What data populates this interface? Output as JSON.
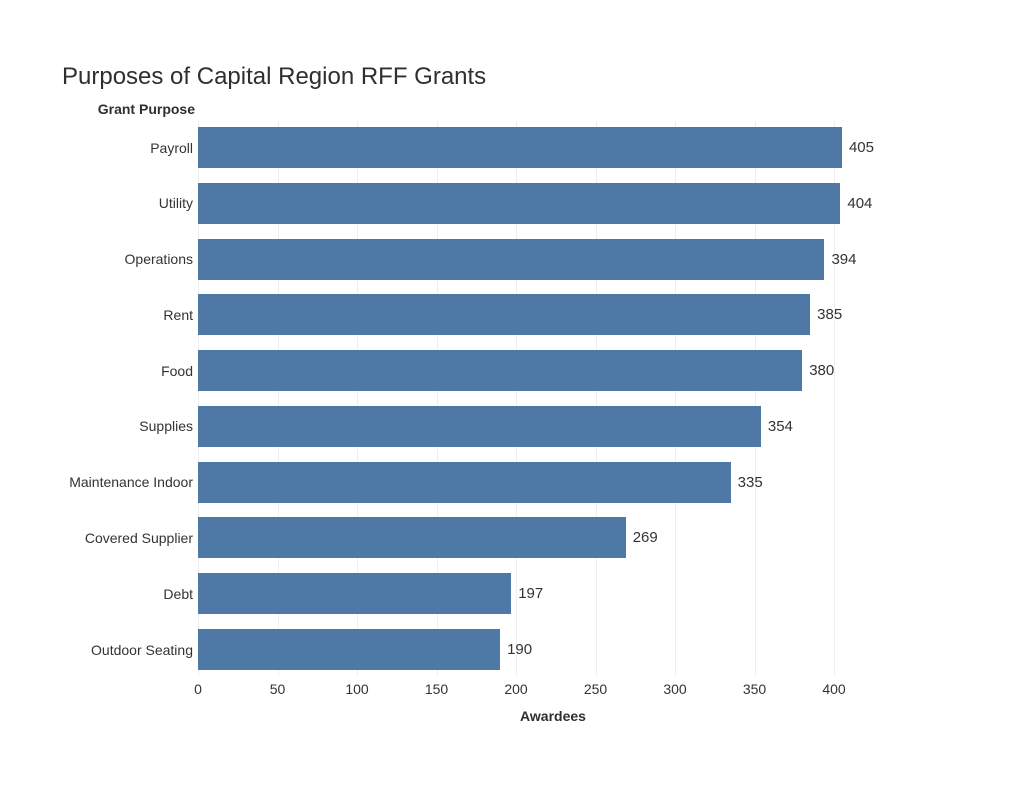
{
  "chart_data": {
    "type": "bar",
    "orientation": "horizontal",
    "title": "Purposes of Capital Region RFF Grants",
    "ylabel": "Grant Purpose",
    "xlabel": "Awardees",
    "categories": [
      "Payroll",
      "Utility",
      "Operations",
      "Rent",
      "Food",
      "Supplies",
      "Maintenance Indoor",
      "Covered Supplier",
      "Debt",
      "Outdoor Seating"
    ],
    "values": [
      405,
      404,
      394,
      385,
      380,
      354,
      335,
      269,
      197,
      190
    ],
    "data_labels": [
      "405",
      "404",
      "394",
      "385",
      "380",
      "354",
      "335",
      "269",
      "197",
      "190"
    ],
    "xticks": [
      0,
      50,
      100,
      150,
      200,
      250,
      300,
      350,
      400
    ],
    "xlim": [
      0,
      450
    ],
    "bar_color": "#4E79A7",
    "grid": true,
    "gridline_color": "#efefef",
    "legend_position": "none"
  }
}
